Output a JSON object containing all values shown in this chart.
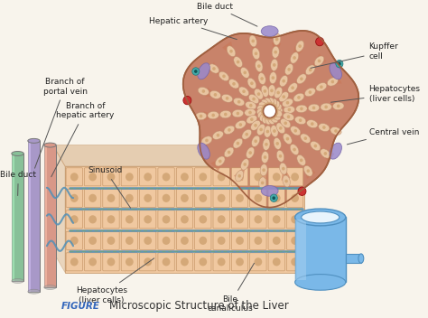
{
  "title": "Microscopic Structure of the Liver",
  "figure_label": "FIGURE",
  "labels": {
    "bile_duct_top": "Bile duct",
    "hepatic_artery": "Hepatic artery",
    "branch_portal": "Branch of\nportal vein",
    "branch_hepatic": "Branch of\nhepatic artery",
    "bile_duct_left": "Bile duct",
    "sinusoid": "Sinusoid",
    "hepatocytes_bottom": "Hepatocytes\n(liver cells)",
    "bile_canaliculus": "Bile\ncanaliculus",
    "kupffer_cell": "Kupffer\ncell",
    "hepatocytes_right": "Hepatocytes\n(liver cells)",
    "central_vein": "Central vein"
  },
  "colors": {
    "background": "#f8f4ec",
    "lobule_fill": "#c8836a",
    "lobule_border": "#a06040",
    "lobule_cord_fill": "#e8c4a0",
    "lobule_cord_border": "#c09070",
    "lobule_sinusoid": "#c87858",
    "hepatocyte_fill": "#f0c8a0",
    "hepatocyte_border": "#c09060",
    "hepatocyte_dark": "#d4a878",
    "central_vein_fill": "#7ab8e8",
    "central_vein_light": "#a8d0f0",
    "central_vein_border": "#5090c0",
    "central_vein_white": "#e8f4fc",
    "bile_duct_tube": "#88c098",
    "portal_vein_tube": "#a898c8",
    "hepatic_artery_tube": "#d89888",
    "sinusoid_line": "#5090b8",
    "sinusoid_green": "#70a870",
    "label_color": "#222222",
    "figure_label_color": "#3366bb",
    "caption_color": "#333333",
    "red_circle": "#cc3333",
    "green_dot": "#44aa44",
    "teal_dot": "#44aaaa",
    "purple_oval": "#9988cc",
    "arrow_color": "#555555",
    "white": "#ffffff",
    "tube_shadow": "#888888"
  },
  "font_sizes": {
    "labels": 6.5,
    "caption": 8.5,
    "figure_label": 7.5
  }
}
